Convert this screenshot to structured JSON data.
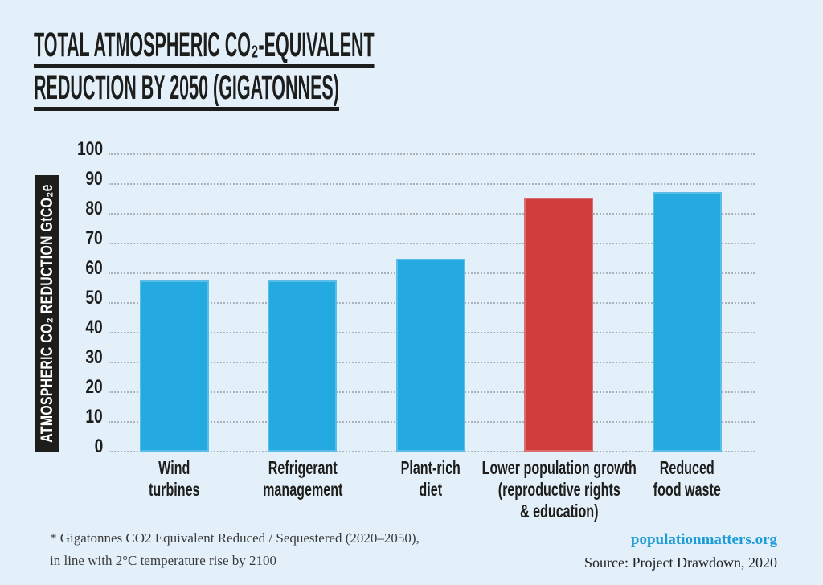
{
  "title": {
    "lines": [
      "TOTAL ATMOSPHERIC CO₂-EQUIVALENT",
      "REDUCTION BY 2050 (GIGATONNES)"
    ]
  },
  "chart_data": {
    "type": "bar",
    "title": "TOTAL ATMOSPHERIC CO₂-EQUIVALENT REDUCTION BY 2050 (GIGATONNES)",
    "ylabel": "ATMOSPHERIC CO₂ REDUCTION GtCO₂e",
    "xlabel": "",
    "unit": "GtCO₂e",
    "ylim": [
      0,
      100
    ],
    "yticks": [
      0,
      10,
      20,
      30,
      40,
      50,
      60,
      70,
      80,
      90,
      100
    ],
    "grid": "horizontal-dotted",
    "legend": "none",
    "categories": [
      "Wind turbines",
      "Refrigerant management",
      "Plant-rich diet",
      "Lower population growth (reproductive rights & education)",
      "Reduced food waste"
    ],
    "category_label_lines": [
      [
        "Wind",
        "turbines"
      ],
      [
        "Refrigerant",
        "management"
      ],
      [
        "Plant-rich",
        "diet"
      ],
      [
        "Lower population growth",
        "(reproductive rights",
        "& education)"
      ],
      [
        "Reduced",
        "food waste"
      ]
    ],
    "values": [
      57.6,
      57.7,
      65,
      85.4,
      87.4
    ],
    "bar_color_default": "#24A9E0",
    "bar_color_highlight": "#D03C3C",
    "highlight_index": 3
  },
  "footer": {
    "note_lines": [
      "* Gigatonnes CO2 Equivalent Reduced / Sequestered (2020–2050),",
      "in line with 2°C temperature rise by 2100"
    ],
    "website": "populationmatters.org",
    "source": "Source: Project Drawdown, 2020"
  },
  "colors": {
    "background": "#E3F0FA",
    "text_dark": "#1D1D1B",
    "gridline": "#A9B2B8",
    "ylabel_strip_bg": "#1D1D1B",
    "ylabel_strip_text": "#FFFFFF",
    "bar_blue": "#24A9E0",
    "bar_red": "#D03C3C",
    "website_blue": "#1E9CD7",
    "footnote_text": "#3A3A3A"
  }
}
